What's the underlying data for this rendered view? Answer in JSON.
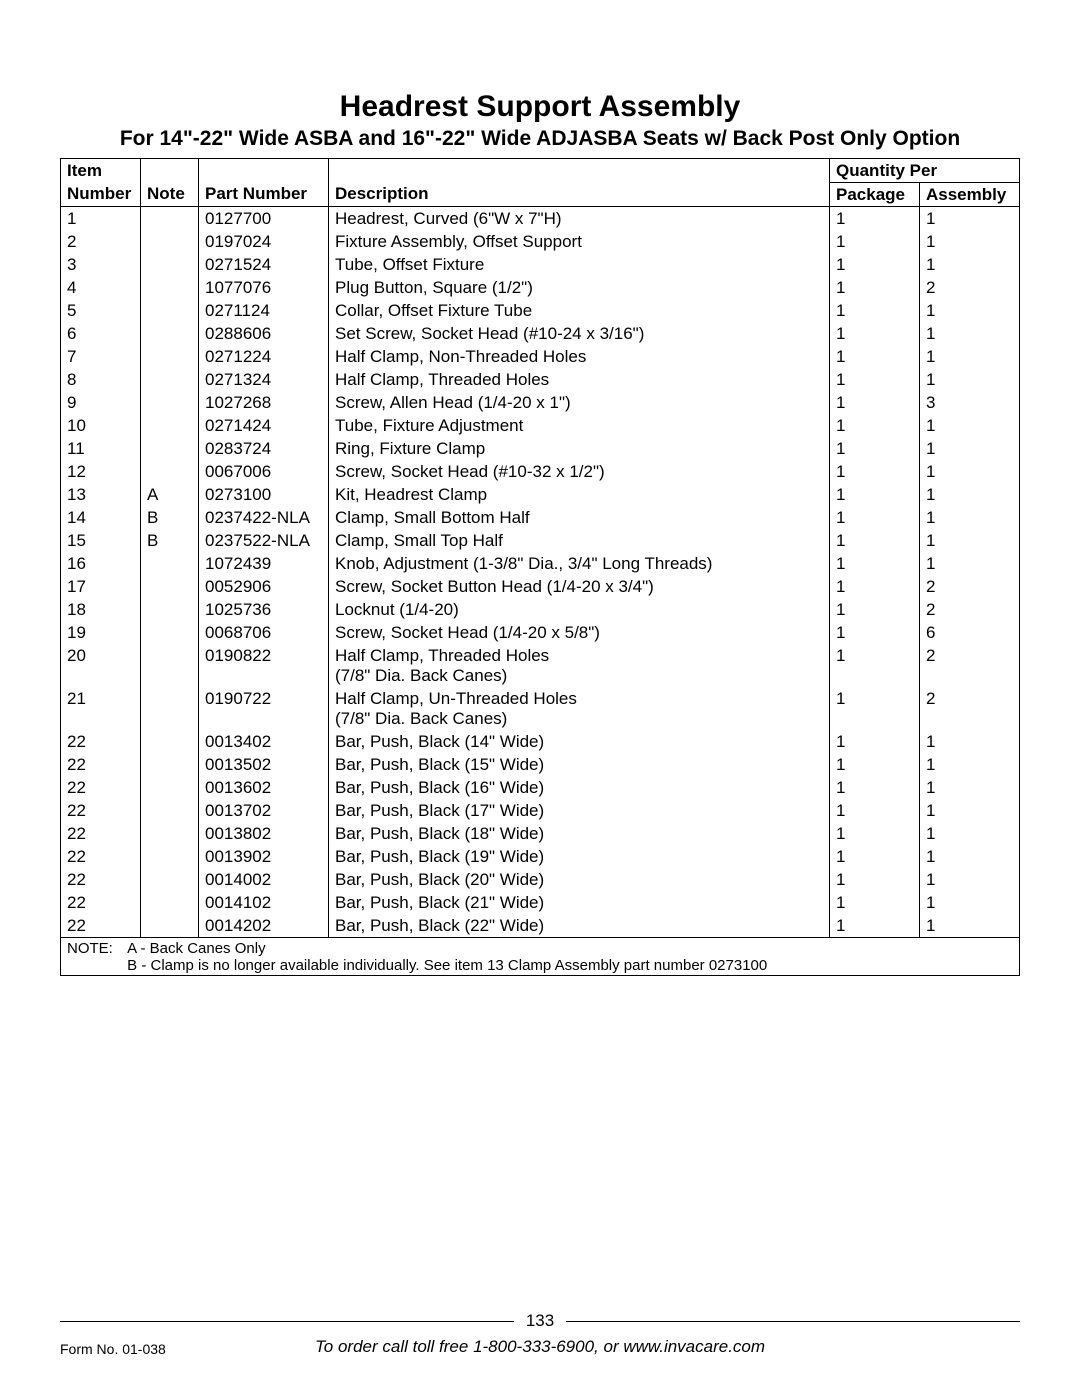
{
  "title": "Headrest Support Assembly",
  "subtitle": "For 14\"-22\" Wide ASBA and 16\"-22\" Wide ADJASBA Seats w/ Back Post Only Option",
  "columns": {
    "item_top": "Item",
    "item": "Number",
    "note": "Note",
    "part": "Part Number",
    "desc": "Description",
    "qty_top": "Quantity Per",
    "pkg": "Package",
    "asm": "Assembly"
  },
  "rows": [
    {
      "item": "1",
      "note": "",
      "part": "0127700",
      "desc": "Headrest, Curved (6\"W x 7\"H)",
      "pkg": "1",
      "asm": "1"
    },
    {
      "item": "2",
      "note": "",
      "part": "0197024",
      "desc": "Fixture Assembly, Offset Support",
      "pkg": "1",
      "asm": "1"
    },
    {
      "item": "3",
      "note": "",
      "part": "0271524",
      "desc": "Tube, Offset Fixture",
      "pkg": "1",
      "asm": "1"
    },
    {
      "item": "4",
      "note": "",
      "part": "1077076",
      "desc": "Plug Button, Square (1/2\")",
      "pkg": "1",
      "asm": "2"
    },
    {
      "item": "5",
      "note": "",
      "part": "0271124",
      "desc": "Collar, Offset Fixture Tube",
      "pkg": "1",
      "asm": "1"
    },
    {
      "item": "6",
      "note": "",
      "part": "0288606",
      "desc": "Set Screw, Socket Head (#10-24 x 3/16\")",
      "pkg": "1",
      "asm": "1"
    },
    {
      "item": "7",
      "note": "",
      "part": "0271224",
      "desc": "Half Clamp, Non-Threaded Holes",
      "pkg": "1",
      "asm": "1"
    },
    {
      "item": "8",
      "note": "",
      "part": "0271324",
      "desc": "Half Clamp, Threaded Holes",
      "pkg": "1",
      "asm": "1"
    },
    {
      "item": "9",
      "note": "",
      "part": "1027268",
      "desc": "Screw, Allen Head (1/4-20 x 1\")",
      "pkg": "1",
      "asm": "3"
    },
    {
      "item": "10",
      "note": "",
      "part": "0271424",
      "desc": "Tube, Fixture Adjustment",
      "pkg": "1",
      "asm": "1"
    },
    {
      "item": "11",
      "note": "",
      "part": "0283724",
      "desc": "Ring, Fixture Clamp",
      "pkg": "1",
      "asm": "1"
    },
    {
      "item": "12",
      "note": "",
      "part": "0067006",
      "desc": "Screw, Socket Head (#10-32 x 1/2\")",
      "pkg": "1",
      "asm": "1"
    },
    {
      "item": "13",
      "note": "A",
      "part": "0273100",
      "desc": "Kit, Headrest Clamp",
      "pkg": "1",
      "asm": "1"
    },
    {
      "item": "14",
      "note": "B",
      "part": "0237422-NLA",
      "desc": "Clamp, Small Bottom Half",
      "pkg": "1",
      "asm": "1"
    },
    {
      "item": "15",
      "note": "B",
      "part": "0237522-NLA",
      "desc": "Clamp, Small Top Half",
      "pkg": "1",
      "asm": "1"
    },
    {
      "item": "16",
      "note": "",
      "part": "1072439",
      "desc": "Knob, Adjustment (1-3/8\" Dia., 3/4\" Long Threads)",
      "pkg": "1",
      "asm": "1"
    },
    {
      "item": "17",
      "note": "",
      "part": "0052906",
      "desc": "Screw, Socket Button Head (1/4-20 x 3/4\")",
      "pkg": "1",
      "asm": "2"
    },
    {
      "item": "18",
      "note": "",
      "part": "1025736",
      "desc": "Locknut (1/4-20)",
      "pkg": "1",
      "asm": "2"
    },
    {
      "item": "19",
      "note": "",
      "part": "0068706",
      "desc": "Screw, Socket Head (1/4-20 x 5/8\")",
      "pkg": "1",
      "asm": "6"
    },
    {
      "item": "20",
      "note": "",
      "part": "0190822",
      "desc": "Half Clamp, Threaded Holes\n(7/8\" Dia. Back Canes)",
      "pkg": "1",
      "asm": "2"
    },
    {
      "item": "21",
      "note": "",
      "part": "0190722",
      "desc": "Half Clamp, Un-Threaded Holes\n(7/8\" Dia. Back Canes)",
      "pkg": "1",
      "asm": "2"
    },
    {
      "item": "22",
      "note": "",
      "part": "0013402",
      "desc": "Bar, Push, Black (14\" Wide)",
      "pkg": "1",
      "asm": "1"
    },
    {
      "item": "22",
      "note": "",
      "part": "0013502",
      "desc": "Bar, Push, Black (15\" Wide)",
      "pkg": "1",
      "asm": "1"
    },
    {
      "item": "22",
      "note": "",
      "part": "0013602",
      "desc": "Bar, Push, Black (16\" Wide)",
      "pkg": "1",
      "asm": "1"
    },
    {
      "item": "22",
      "note": "",
      "part": "0013702",
      "desc": "Bar, Push, Black (17\" Wide)",
      "pkg": "1",
      "asm": "1"
    },
    {
      "item": "22",
      "note": "",
      "part": "0013802",
      "desc": "Bar, Push, Black (18\" Wide)",
      "pkg": "1",
      "asm": "1"
    },
    {
      "item": "22",
      "note": "",
      "part": "0013902",
      "desc": "Bar, Push, Black (19\" Wide)",
      "pkg": "1",
      "asm": "1"
    },
    {
      "item": "22",
      "note": "",
      "part": "0014002",
      "desc": "Bar, Push, Black (20\" Wide)",
      "pkg": "1",
      "asm": "1"
    },
    {
      "item": "22",
      "note": "",
      "part": "0014102",
      "desc": "Bar, Push, Black (21\" Wide)",
      "pkg": "1",
      "asm": "1"
    },
    {
      "item": "22",
      "note": "",
      "part": "0014202",
      "desc": "Bar, Push, Black (22\" Wide)",
      "pkg": "1",
      "asm": "1"
    }
  ],
  "notes_label": "NOTE:",
  "notes": [
    "A - Back Canes Only",
    "B - Clamp is no longer available individually. See item 13 Clamp Assembly part number 0273100"
  ],
  "page_number": "133",
  "form_no": "Form No. 01-038",
  "order_line": "To order call toll free 1-800-333-6900, or www.invacare.com"
}
